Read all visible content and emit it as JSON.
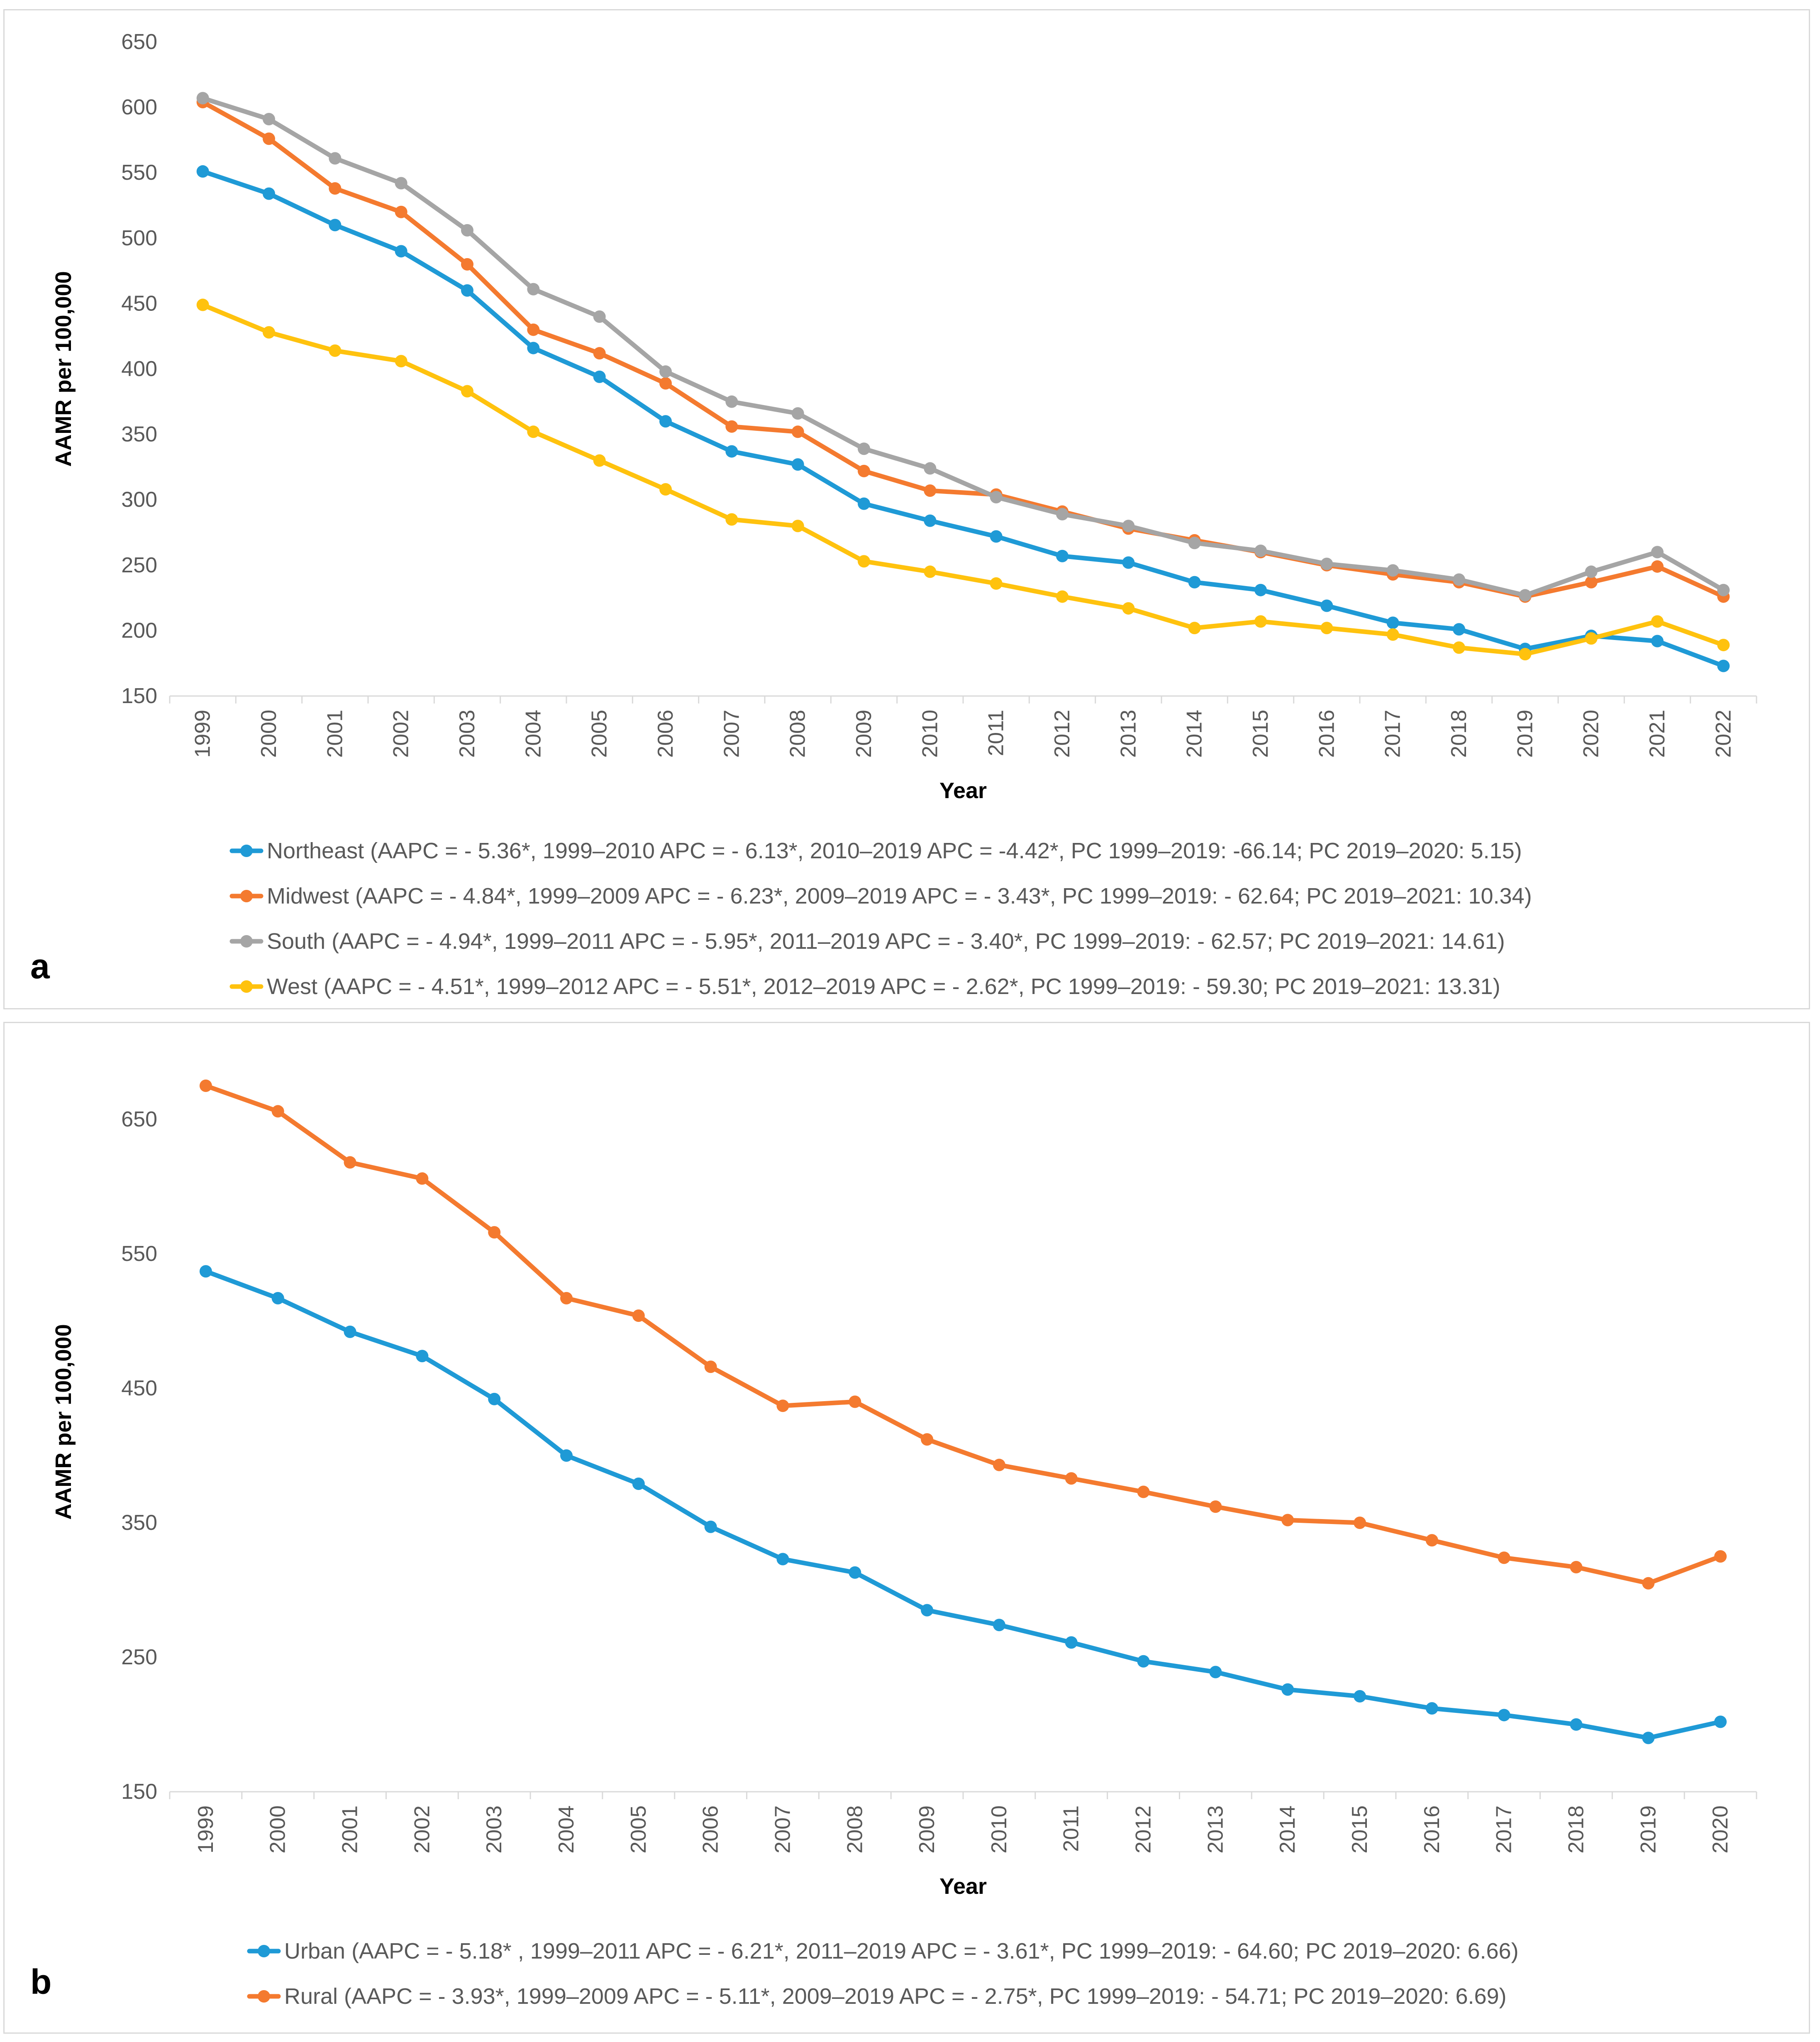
{
  "chart_data": [
    {
      "type": "line",
      "panel_label": "a",
      "title": "",
      "xlabel": "Year",
      "ylabel": "AAMR per 100,000",
      "ylim": [
        150,
        650
      ],
      "yticks": [
        150,
        200,
        250,
        300,
        350,
        400,
        450,
        500,
        550,
        600,
        650
      ],
      "grid": false,
      "legend_position": "bottom",
      "categories": [
        "1999",
        "2000",
        "2001",
        "2002",
        "2003",
        "2004",
        "2005",
        "2006",
        "2007",
        "2008",
        "2009",
        "2010",
        "2011",
        "2012",
        "2013",
        "2014",
        "2015",
        "2016",
        "2017",
        "2018",
        "2019",
        "2020",
        "2021",
        "2022"
      ],
      "series": [
        {
          "name": "Northeast (AAPC = - 5.36*, 1999–2010 APC = - 6.13*, 2010–2019 APC = -4.42*, PC 1999–2019: -66.14; PC 2019–2020: 5.15)",
          "color": "#1f9ad6",
          "values": [
            551,
            534,
            510,
            490,
            460,
            416,
            394,
            360,
            337,
            327,
            297,
            284,
            272,
            257,
            252,
            237,
            231,
            219,
            206,
            201,
            186,
            196,
            192,
            173
          ]
        },
        {
          "name": "Midwest (AAPC = - 4.84*, 1999–2009 APC = - 6.23*, 2009–2019 APC = - 3.43*, PC 1999–2019: - 62.64; PC 2019–2021: 10.34)",
          "color": "#f47a2f",
          "values": [
            604,
            576,
            538,
            520,
            480,
            430,
            412,
            389,
            356,
            352,
            322,
            307,
            304,
            291,
            278,
            269,
            260,
            250,
            243,
            237,
            226,
            237,
            249,
            226
          ]
        },
        {
          "name": "South (AAPC = - 4.94*, 1999–2011 APC = - 5.95*, 2011–2019 APC = - 3.40*, PC 1999–2019: - 62.57; PC 2019–2021: 14.61)",
          "color": "#a5a5a5",
          "values": [
            607,
            591,
            561,
            542,
            506,
            461,
            440,
            398,
            375,
            366,
            339,
            324,
            302,
            289,
            280,
            267,
            261,
            251,
            246,
            239,
            227,
            245,
            260,
            231
          ]
        },
        {
          "name": "West (AAPC = - 4.51*, 1999–2012 APC = - 5.51*, 2012–2019 APC = - 2.62*, PC 1999–2019: - 59.30; PC 2019–2021: 13.31)",
          "color": "#ffc20e",
          "values": [
            449,
            428,
            414,
            406,
            383,
            352,
            330,
            308,
            285,
            280,
            253,
            245,
            236,
            226,
            217,
            202,
            207,
            202,
            197,
            187,
            182,
            194,
            207,
            189
          ]
        }
      ]
    },
    {
      "type": "line",
      "panel_label": "b",
      "title": "",
      "xlabel": "Year",
      "ylabel": "AAMR per 100,000",
      "ylim": [
        150,
        700
      ],
      "yticks": [
        150,
        250,
        350,
        450,
        550,
        650
      ],
      "grid": false,
      "legend_position": "bottom",
      "categories": [
        "1999",
        "2000",
        "2001",
        "2002",
        "2003",
        "2004",
        "2005",
        "2006",
        "2007",
        "2008",
        "2009",
        "2010",
        "2011",
        "2012",
        "2013",
        "2014",
        "2015",
        "2016",
        "2017",
        "2018",
        "2019",
        "2020"
      ],
      "series": [
        {
          "name": "Urban (AAPC = - 5.18* , 1999–2011 APC = - 6.21*, 2011–2019 APC = - 3.61*, PC 1999–2019: - 64.60; PC 2019–2020: 6.66)",
          "color": "#1f9ad6",
          "values": [
            537,
            517,
            492,
            474,
            442,
            400,
            379,
            347,
            323,
            313,
            285,
            274,
            261,
            247,
            239,
            226,
            221,
            212,
            207,
            200,
            190,
            202
          ]
        },
        {
          "name": "Rural (AAPC = - 3.93*, 1999–2009 APC = - 5.11*, 2009–2019 APC = - 2.75*, PC 1999–2019: - 54.71; PC 2019–2020: 6.69)",
          "color": "#f47a2f",
          "values": [
            675,
            656,
            618,
            606,
            566,
            517,
            504,
            466,
            437,
            440,
            412,
            393,
            383,
            373,
            362,
            352,
            350,
            337,
            324,
            317,
            305,
            325
          ]
        }
      ]
    }
  ]
}
